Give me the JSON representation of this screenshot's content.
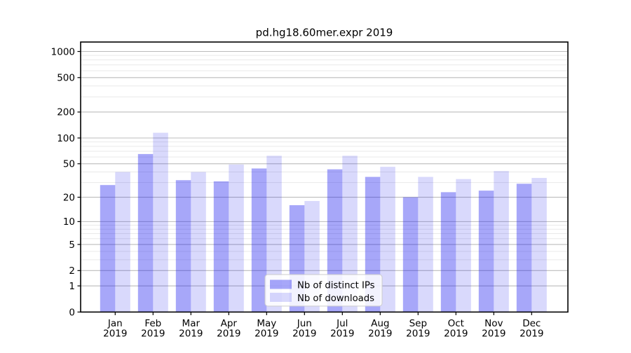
{
  "figure": {
    "background": "#ffffff"
  },
  "chart_data": {
    "type": "bar",
    "title": "pd.hg18.60mer.expr 2019",
    "year": "2019",
    "categories": [
      "Jan",
      "Feb",
      "Mar",
      "Apr",
      "May",
      "Jun",
      "Jul",
      "Aug",
      "Sep",
      "Oct",
      "Nov",
      "Dec"
    ],
    "series": [
      {
        "key": "ips",
        "name": "Nb of distinct IPs",
        "color": "rgba(17,17,238,0.37)",
        "values": [
          28,
          65,
          32,
          31,
          44,
          16,
          43,
          35,
          20,
          23,
          24,
          29
        ]
      },
      {
        "key": "downloads",
        "name": "Nb of downloads",
        "color": "rgba(17,17,238,0.16)",
        "values": [
          40,
          115,
          40,
          49,
          62,
          18,
          62,
          46,
          35,
          33,
          41,
          34
        ]
      }
    ],
    "yscale": "log1p",
    "ylim": [
      0,
      1285
    ],
    "yticks": [
      0,
      1,
      2,
      5,
      10,
      20,
      50,
      100,
      200,
      500,
      1000
    ],
    "yticks_minor": [
      3,
      4,
      6,
      7,
      8,
      9,
      30,
      40,
      60,
      70,
      80,
      90,
      300,
      400,
      600,
      700,
      800,
      900
    ],
    "grid": {
      "enabled": true,
      "major_color": "#bcbcbc",
      "minor_color": "#e9e9e9"
    },
    "axes": {
      "spine_color": "#000000",
      "tick_color": "#000000"
    },
    "legend": {
      "position": "lower-center",
      "background": "rgba(255,255,255,0.85)",
      "border_color": "#cccccc"
    }
  }
}
